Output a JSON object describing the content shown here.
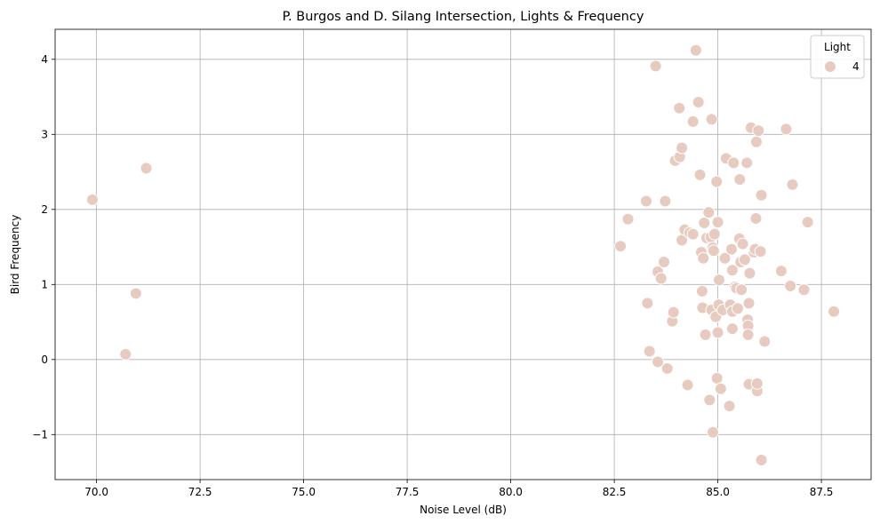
{
  "chart_data": {
    "type": "scatter",
    "title": "P. Burgos and D. Silang Intersection, Lights & Frequency",
    "xlabel": "Noise Level (dB)",
    "ylabel": "Bird Frequency",
    "xlim": [
      69.0,
      88.7
    ],
    "ylim": [
      -1.6,
      4.4
    ],
    "x_ticks": [
      70.0,
      72.5,
      75.0,
      77.5,
      80.0,
      82.5,
      85.0,
      87.5
    ],
    "x_tick_labels": [
      "70.0",
      "72.5",
      "75.0",
      "77.5",
      "80.0",
      "82.5",
      "85.0",
      "87.5"
    ],
    "y_ticks": [
      -1,
      0,
      1,
      2,
      3,
      4
    ],
    "y_tick_labels": [
      "−1",
      "0",
      "1",
      "2",
      "3",
      "4"
    ],
    "grid": true,
    "legend": {
      "title": "Light",
      "placement": "top-right",
      "entries": [
        {
          "label": "4",
          "color": "#e8cbc0"
        }
      ]
    },
    "marker_color": "#e8cbc0",
    "marker_edge_color": "#ffffff",
    "series": [
      {
        "name": "4",
        "points": [
          [
            69.9,
            2.13
          ],
          [
            70.7,
            0.07
          ],
          [
            70.95,
            0.88
          ],
          [
            71.2,
            2.55
          ],
          [
            82.65,
            1.51
          ],
          [
            82.83,
            1.87
          ],
          [
            83.27,
            2.11
          ],
          [
            83.3,
            0.75
          ],
          [
            83.35,
            0.11
          ],
          [
            83.5,
            3.91
          ],
          [
            83.55,
            1.17
          ],
          [
            83.55,
            -0.03
          ],
          [
            83.63,
            1.08
          ],
          [
            83.7,
            1.3
          ],
          [
            83.73,
            2.11
          ],
          [
            83.78,
            -0.12
          ],
          [
            83.9,
            0.51
          ],
          [
            83.93,
            0.63
          ],
          [
            83.97,
            2.65
          ],
          [
            84.07,
            3.35
          ],
          [
            84.08,
            2.7
          ],
          [
            84.13,
            2.82
          ],
          [
            84.13,
            1.59
          ],
          [
            84.2,
            1.73
          ],
          [
            84.27,
            -0.34
          ],
          [
            84.32,
            1.69
          ],
          [
            84.4,
            1.67
          ],
          [
            84.4,
            3.17
          ],
          [
            84.47,
            4.12
          ],
          [
            84.53,
            3.43
          ],
          [
            84.57,
            2.46
          ],
          [
            84.6,
            1.43
          ],
          [
            84.62,
            0.91
          ],
          [
            84.63,
            0.69
          ],
          [
            84.65,
            1.35
          ],
          [
            84.67,
            1.82
          ],
          [
            84.7,
            0.33
          ],
          [
            84.73,
            1.62
          ],
          [
            84.78,
            1.96
          ],
          [
            84.8,
            -0.54
          ],
          [
            84.83,
            1.63
          ],
          [
            84.85,
            0.66
          ],
          [
            84.85,
            3.2
          ],
          [
            84.88,
            1.49
          ],
          [
            84.88,
            -0.97
          ],
          [
            84.9,
            1.45
          ],
          [
            84.92,
            1.67
          ],
          [
            84.95,
            0.57
          ],
          [
            84.97,
            2.37
          ],
          [
            84.98,
            -0.25
          ],
          [
            85.0,
            1.83
          ],
          [
            85.0,
            0.36
          ],
          [
            85.02,
            0.73
          ],
          [
            85.03,
            1.06
          ],
          [
            85.07,
            -0.39
          ],
          [
            85.12,
            0.66
          ],
          [
            85.17,
            1.35
          ],
          [
            85.2,
            2.68
          ],
          [
            85.28,
            -0.62
          ],
          [
            85.3,
            0.73
          ],
          [
            85.33,
            1.47
          ],
          [
            85.35,
            1.19
          ],
          [
            85.35,
            0.41
          ],
          [
            85.35,
            0.64
          ],
          [
            85.38,
            2.62
          ],
          [
            85.42,
            0.97
          ],
          [
            85.45,
            0.95
          ],
          [
            85.48,
            0.68
          ],
          [
            85.52,
            1.61
          ],
          [
            85.53,
            2.4
          ],
          [
            85.55,
            1.3
          ],
          [
            85.57,
            0.93
          ],
          [
            85.6,
            1.54
          ],
          [
            85.65,
            1.33
          ],
          [
            85.7,
            2.62
          ],
          [
            85.72,
            0.53
          ],
          [
            85.73,
            0.45
          ],
          [
            85.73,
            0.33
          ],
          [
            85.75,
            0.75
          ],
          [
            85.75,
            -0.33
          ],
          [
            85.77,
            1.15
          ],
          [
            85.8,
            3.09
          ],
          [
            85.87,
            1.43
          ],
          [
            85.9,
            1.47
          ],
          [
            85.92,
            1.88
          ],
          [
            85.93,
            2.9
          ],
          [
            85.95,
            -0.42
          ],
          [
            85.95,
            -0.32
          ],
          [
            85.98,
            3.05
          ],
          [
            86.03,
            1.44
          ],
          [
            86.05,
            2.19
          ],
          [
            86.05,
            -1.34
          ],
          [
            86.13,
            0.24
          ],
          [
            86.53,
            1.18
          ],
          [
            86.65,
            3.07
          ],
          [
            86.75,
            0.98
          ],
          [
            86.8,
            2.33
          ],
          [
            87.08,
            0.93
          ],
          [
            87.17,
            1.83
          ],
          [
            87.8,
            0.64
          ]
        ]
      }
    ]
  }
}
